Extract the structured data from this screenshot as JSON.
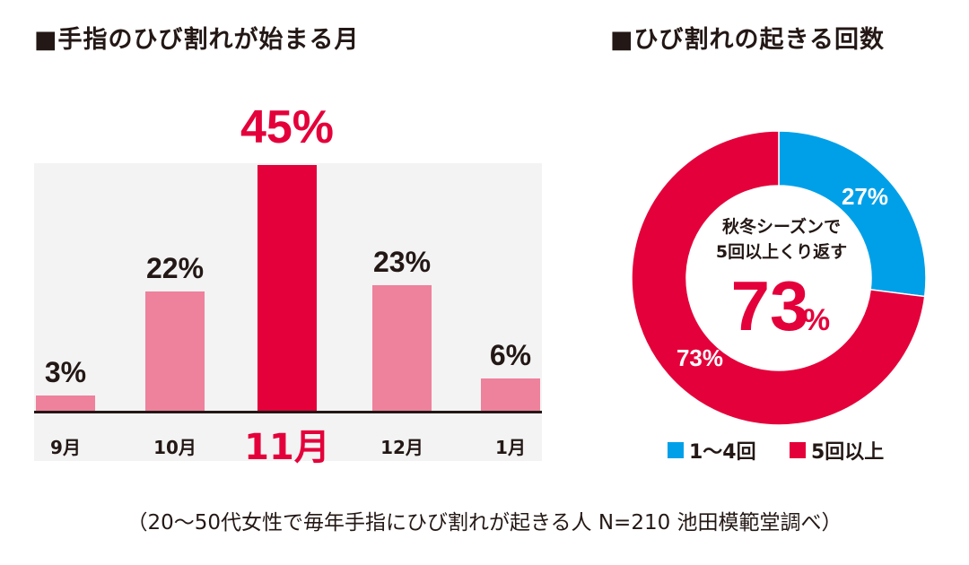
{
  "left": {
    "title": "■手指のひび割れが始まる月"
  },
  "right": {
    "title": "■ひび割れの起きる回数",
    "center_line1": "秋冬シーズンで",
    "center_line2": "5回以上くり返す",
    "center_big": "73",
    "center_pct": "%"
  },
  "footnote": "（20〜50代女性で毎年手指にひび割れが起きる人 N=210 池田模範堂調べ）",
  "colors": {
    "bar": "#ee819c",
    "highlight": "#e4003a",
    "blue": "#00a0e9",
    "panel": "#f3f3f3"
  },
  "chart_data": [
    {
      "type": "bar",
      "title": "■手指のひび割れが始まる月",
      "categories": [
        "9月",
        "10月",
        "11月",
        "12月",
        "1月"
      ],
      "values": [
        3,
        22,
        45,
        23,
        6
      ],
      "value_labels": [
        "3%",
        "22%",
        "45%",
        "23%",
        "6%"
      ],
      "highlight_index": 2,
      "ylim": [
        0,
        50
      ],
      "grid": false
    },
    {
      "type": "pie",
      "title": "■ひび割れの起きる回数",
      "labels": [
        "1〜4回",
        "5回以上"
      ],
      "values": [
        27,
        73
      ],
      "value_labels": [
        "27%",
        "73%"
      ],
      "colors": [
        "#00a0e9",
        "#e4003a"
      ],
      "donut": true,
      "legend": "bottom"
    }
  ]
}
